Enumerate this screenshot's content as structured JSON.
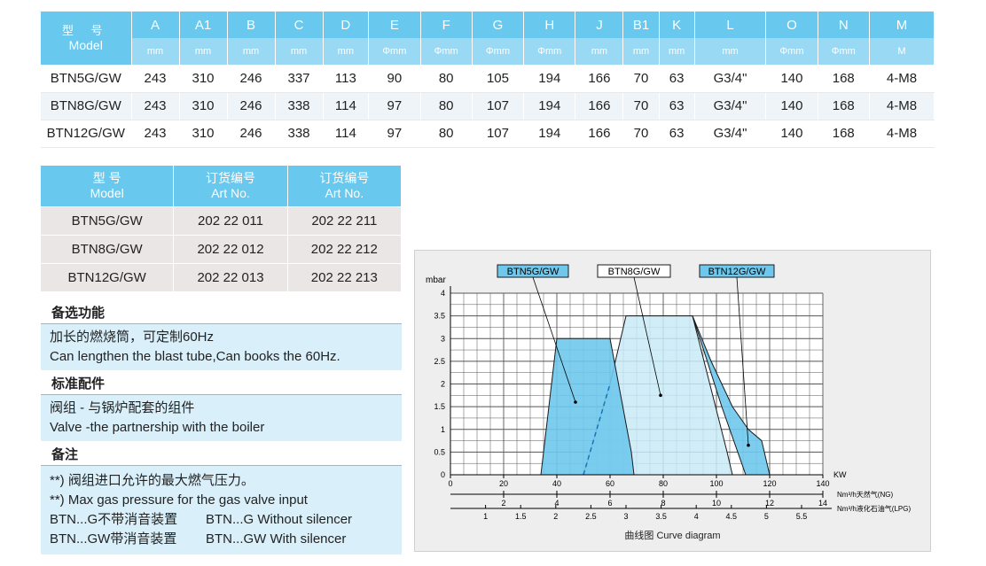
{
  "spec_table": {
    "model_zh": "型 号",
    "model_en": "Model",
    "columns": [
      "A",
      "A1",
      "B",
      "C",
      "D",
      "E",
      "F",
      "G",
      "H",
      "J",
      "B1",
      "K",
      "L",
      "O",
      "N",
      "M"
    ],
    "units": [
      "mm",
      "mm",
      "mm",
      "mm",
      "mm",
      "Φmm",
      "Φmm",
      "Φmm",
      "Φmm",
      "mm",
      "mm",
      "mm",
      "mm",
      "Φmm",
      "Φmm",
      "M"
    ],
    "rows": [
      {
        "model": "BTN5G/GW",
        "values": [
          "243",
          "310",
          "246",
          "337",
          "113",
          "90",
          "80",
          "105",
          "194",
          "166",
          "70",
          "63",
          "G3/4\"",
          "140",
          "168",
          "4-M8"
        ]
      },
      {
        "model": "BTN8G/GW",
        "values": [
          "243",
          "310",
          "246",
          "338",
          "114",
          "97",
          "80",
          "107",
          "194",
          "166",
          "70",
          "63",
          "G3/4\"",
          "140",
          "168",
          "4-M8"
        ]
      },
      {
        "model": "BTN12G/GW",
        "values": [
          "243",
          "310",
          "246",
          "338",
          "114",
          "97",
          "80",
          "107",
          "194",
          "166",
          "70",
          "63",
          "G3/4\"",
          "140",
          "168",
          "4-M8"
        ]
      }
    ]
  },
  "article_table": {
    "headers": [
      {
        "zh": "型 号",
        "en": "Model"
      },
      {
        "zh": "订货编号",
        "en": "Art No."
      },
      {
        "zh": "订货编号",
        "en": "Art No."
      }
    ],
    "rows": [
      [
        "BTN5G/GW",
        "202 22 011",
        "202 22 211"
      ],
      [
        "BTN8G/GW",
        "202 22 012",
        "202 22 212"
      ],
      [
        "BTN12G/GW",
        "202 22 013",
        "202 22 213"
      ]
    ]
  },
  "options": {
    "title": "备选功能",
    "line1": "加长的燃烧筒，可定制60Hz",
    "line2": "Can lengthen the blast tube,Can books the 60Hz."
  },
  "standard": {
    "title": "标准配件",
    "line1": "阀组 - 与锅炉配套的组件",
    "line2": "Valve -the partnership with the boiler"
  },
  "notes": {
    "title": "备注",
    "line1": "**) 阀组进口允许的最大燃气压力。",
    "line2": "**) Max gas pressure for the gas valve input",
    "pairs": [
      [
        "BTN...G不带消音装置",
        "BTN...G Without silencer"
      ],
      [
        "BTN...GW带消音装置",
        "BTN...GW With silencer"
      ]
    ]
  },
  "chart_data": {
    "type": "area",
    "ylabel": "mbar",
    "xlabel": "KW",
    "ylim": [
      0,
      4
    ],
    "xlim": [
      0,
      140
    ],
    "yticks": [
      "0",
      "0.5",
      "1",
      "1.5",
      "2",
      "2.5",
      "3",
      "3.5",
      "4"
    ],
    "xticks": [
      "0",
      "20",
      "40",
      "60",
      "80",
      "100",
      "120",
      "140"
    ],
    "secondary_axes": [
      {
        "label": "Nm³/h天然气(NG)",
        "ticks": [
          "2",
          "4",
          "6",
          "8",
          "10",
          "12",
          "14"
        ],
        "positions_kw": [
          20,
          40,
          60,
          80,
          100,
          120,
          140
        ]
      },
      {
        "label": "Nm³/h液化石油气(LPG)",
        "ticks": [
          "1",
          "1.5",
          "2",
          "2.5",
          "3",
          "3.5",
          "4",
          "4.5",
          "5",
          "5.5"
        ],
        "positions_kw": [
          13.2,
          26.4,
          39.6,
          52.8,
          66,
          79.2,
          92.4,
          105.6,
          118.8,
          132
        ]
      }
    ],
    "series": [
      {
        "name": "BTN5G/GW",
        "points": [
          [
            34,
            0
          ],
          [
            40,
            3
          ],
          [
            60,
            3
          ],
          [
            68,
            0.5
          ],
          [
            69,
            0
          ]
        ]
      },
      {
        "name": "BTN8G/GW",
        "points": [
          [
            50,
            0
          ],
          [
            60,
            2
          ],
          [
            66,
            3.5
          ],
          [
            91,
            3.5
          ],
          [
            104,
            0.5
          ],
          [
            106,
            0
          ]
        ]
      },
      {
        "name": "BTN12G/GW",
        "points": [
          [
            91,
            3.5
          ],
          [
            98,
            2.5
          ],
          [
            106,
            1.5
          ],
          [
            112,
            1
          ],
          [
            117,
            0.75
          ],
          [
            120,
            0
          ],
          [
            111,
            0
          ],
          [
            102,
            1.5
          ],
          [
            96,
            2.6
          ]
        ]
      }
    ],
    "grid": true,
    "caption": "曲线图 Curve diagram",
    "colors": {
      "fill": "#6fc8ec",
      "light_fill": "#c8eaf7",
      "stroke": "#1a1a1a"
    }
  }
}
